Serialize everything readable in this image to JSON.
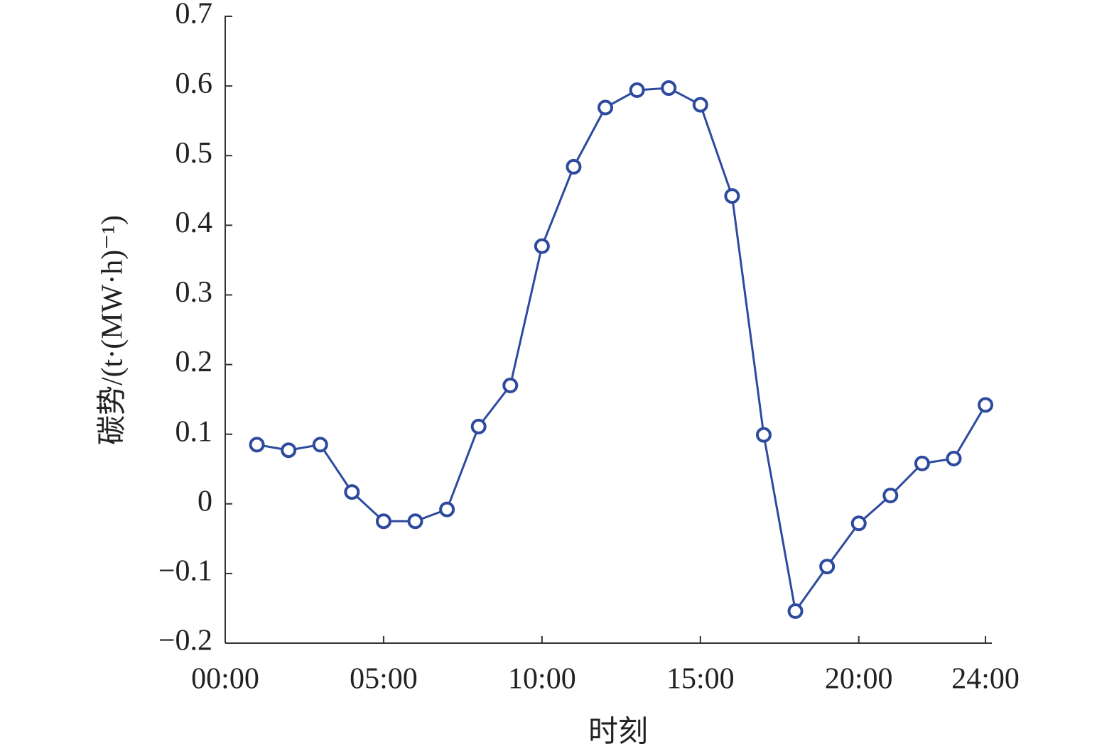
{
  "chart_data": {
    "type": "line",
    "x_label": "时刻",
    "y_label": "碳势/(t·(MW·h)⁻¹)",
    "x": [
      1,
      2,
      3,
      4,
      5,
      6,
      7,
      8,
      9,
      10,
      11,
      12,
      13,
      14,
      15,
      16,
      17,
      18,
      19,
      20,
      21,
      22,
      23,
      24
    ],
    "series": [
      {
        "color": "#2e4a9e",
        "values": [
          0.085,
          0.077,
          0.085,
          0.017,
          -0.025,
          -0.025,
          -0.008,
          0.111,
          0.17,
          0.37,
          0.484,
          0.569,
          0.594,
          0.597,
          0.573,
          0.442,
          0.099,
          -0.154,
          -0.09,
          -0.028,
          0.012,
          0.058,
          0.065,
          0.142
        ]
      }
    ],
    "xlim": [
      0,
      24.2
    ],
    "xticks": [
      {
        "value": 0,
        "label": "00:00"
      },
      {
        "value": 5,
        "label": "05:00"
      },
      {
        "value": 10,
        "label": "10:00"
      },
      {
        "value": 15,
        "label": "15:00"
      },
      {
        "value": 20,
        "label": "20:00"
      },
      {
        "value": 24,
        "label": "24:00"
      }
    ],
    "ylim": [
      -0.2,
      0.7
    ],
    "yticks": [
      {
        "value": -0.2,
        "label": "−0.2"
      },
      {
        "value": -0.1,
        "label": "−0.1"
      },
      0,
      0.1,
      0.2,
      0.3,
      0.4,
      0.5,
      0.6,
      0.7
    ],
    "grid": false
  }
}
